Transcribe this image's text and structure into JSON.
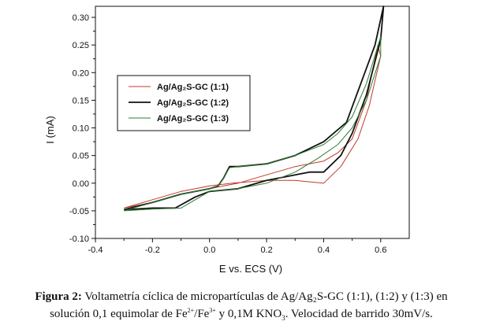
{
  "chart_data": {
    "type": "line",
    "xlabel": "E vs. ECS (V)",
    "ylabel": "I (mA)",
    "xlim": [
      -0.4,
      0.7
    ],
    "ylim": [
      -0.1,
      0.32
    ],
    "xticks": [
      -0.4,
      -0.2,
      0.0,
      0.2,
      0.4,
      0.6
    ],
    "xtick_labels": [
      "-0.4",
      "-0.2",
      "0.0",
      "0.2",
      "0.4",
      "0.6"
    ],
    "yticks": [
      -0.1,
      -0.05,
      0.0,
      0.05,
      0.1,
      0.15,
      0.2,
      0.25,
      0.3
    ],
    "ytick_labels": [
      "-0.10",
      "-0.05",
      "0.00",
      "0.05",
      "0.10",
      "0.15",
      "0.20",
      "0.25",
      "0.30"
    ],
    "grid": false,
    "legend_position": "upper-left",
    "series": [
      {
        "name": "Ag/Ag₂S-GC (1:1)",
        "color": "#c0392b",
        "stroke_width": 1.0,
        "x": [
          -0.3,
          -0.2,
          -0.1,
          0.0,
          0.08,
          0.2,
          0.3,
          0.4,
          0.46,
          0.52,
          0.56,
          0.6,
          0.59,
          0.55,
          0.5,
          0.45,
          0.4,
          0.3,
          0.2,
          0.1,
          0.05,
          0.0,
          -0.1,
          -0.2,
          -0.3
        ],
        "y": [
          -0.045,
          -0.03,
          -0.015,
          -0.005,
          0.0,
          0.005,
          0.005,
          0.0,
          0.03,
          0.08,
          0.14,
          0.23,
          0.25,
          0.15,
          0.08,
          0.055,
          0.04,
          0.03,
          0.015,
          0.0,
          -0.005,
          -0.01,
          -0.02,
          -0.035,
          -0.045
        ]
      },
      {
        "name": "Ag/Ag₂S-GC (1:2)",
        "color": "#111111",
        "stroke_width": 1.8,
        "x": [
          -0.3,
          -0.2,
          -0.12,
          -0.05,
          0.0,
          0.1,
          0.2,
          0.3,
          0.35,
          0.4,
          0.46,
          0.5,
          0.55,
          0.6,
          0.61,
          0.58,
          0.53,
          0.48,
          0.4,
          0.3,
          0.2,
          0.1,
          0.07,
          0.05,
          0.03,
          0.0,
          -0.1,
          -0.2,
          -0.3
        ],
        "y": [
          -0.048,
          -0.045,
          -0.045,
          -0.025,
          -0.015,
          -0.01,
          0.005,
          0.015,
          0.02,
          0.02,
          0.05,
          0.09,
          0.16,
          0.26,
          0.32,
          0.25,
          0.18,
          0.11,
          0.075,
          0.05,
          0.035,
          0.03,
          0.03,
          0.01,
          -0.005,
          -0.01,
          -0.02,
          -0.035,
          -0.048
        ]
      },
      {
        "name": "Ag/Ag₂S-GC (1:3)",
        "color": "#2e7d32",
        "stroke_width": 1.0,
        "x": [
          -0.3,
          -0.2,
          -0.1,
          -0.05,
          0.0,
          0.1,
          0.2,
          0.3,
          0.38,
          0.45,
          0.5,
          0.55,
          0.6,
          0.6,
          0.55,
          0.5,
          0.45,
          0.4,
          0.3,
          0.2,
          0.1,
          0.07,
          0.05,
          0.03,
          0.0,
          -0.1,
          -0.2,
          -0.3
        ],
        "y": [
          -0.05,
          -0.047,
          -0.045,
          -0.03,
          -0.015,
          -0.01,
          0.0,
          0.02,
          0.045,
          0.07,
          0.1,
          0.15,
          0.23,
          0.265,
          0.18,
          0.12,
          0.09,
          0.07,
          0.05,
          0.035,
          0.03,
          0.028,
          0.01,
          -0.005,
          -0.01,
          -0.02,
          -0.035,
          -0.05
        ]
      }
    ]
  },
  "caption": {
    "label": "Figura 2:",
    "line1_text": " Voltametría cíclica de micropartículas de Ag/Ag₂S-GC (1:1), (1:2) y (1:3) en",
    "line2_a": "solución  0,1 equimolar  de Fe",
    "sup1": "2+",
    "line2_b": "/Fe",
    "sup2": "3+",
    "line2_c": "  y 0,1M KNO",
    "sub1": "3",
    "line2_d": ". Velocidad de barrido 30mV/s."
  }
}
